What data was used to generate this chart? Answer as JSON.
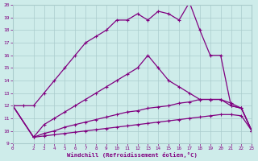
{
  "xlabel": "Windchill (Refroidissement éolien,°C)",
  "bg_color": "#ceecea",
  "line_color": "#800080",
  "grid_color": "#aacccc",
  "xlim": [
    0,
    23
  ],
  "ylim": [
    9,
    20
  ],
  "xticks": [
    0,
    2,
    3,
    4,
    5,
    6,
    7,
    8,
    9,
    10,
    11,
    12,
    13,
    14,
    15,
    16,
    17,
    18,
    19,
    20,
    21,
    22,
    23
  ],
  "yticks": [
    9,
    10,
    11,
    12,
    13,
    14,
    15,
    16,
    17,
    18,
    19,
    20
  ],
  "curve_top_x": [
    0,
    1,
    2,
    3,
    4,
    5,
    6,
    7,
    8,
    9,
    10,
    11,
    12,
    13,
    14,
    15,
    16,
    17,
    18,
    19,
    20,
    21,
    22,
    23
  ],
  "curve_top_y": [
    12.0,
    12.0,
    12.0,
    13.0,
    14.0,
    15.0,
    16.0,
    17.0,
    17.5,
    18.0,
    18.8,
    18.8,
    19.3,
    18.8,
    19.5,
    19.3,
    18.8,
    20.2,
    18.0,
    16.0,
    16.0,
    12.0,
    11.8,
    10.0
  ],
  "curve_mid_x": [
    0,
    2,
    3,
    4,
    5,
    6,
    7,
    8,
    9,
    10,
    11,
    12,
    13,
    14,
    15,
    16,
    17,
    18,
    19,
    20,
    21,
    22,
    23
  ],
  "curve_mid_y": [
    12.0,
    9.5,
    10.5,
    11.0,
    11.5,
    12.0,
    12.5,
    13.0,
    13.5,
    14.0,
    14.5,
    15.0,
    16.0,
    15.0,
    14.0,
    13.5,
    13.0,
    12.5,
    12.5,
    12.5,
    12.0,
    11.8,
    10.0
  ],
  "curve_low_x": [
    0,
    2,
    3,
    4,
    5,
    6,
    7,
    8,
    9,
    10,
    11,
    12,
    13,
    14,
    15,
    16,
    17,
    18,
    19,
    20,
    21,
    22,
    23
  ],
  "curve_low_y": [
    12.0,
    9.5,
    9.8,
    10.0,
    10.3,
    10.5,
    10.7,
    10.9,
    11.1,
    11.3,
    11.5,
    11.6,
    11.8,
    11.9,
    12.0,
    12.2,
    12.3,
    12.5,
    12.5,
    12.5,
    12.2,
    11.8,
    10.0
  ],
  "curve_flat_x": [
    0,
    2,
    3,
    4,
    5,
    6,
    7,
    8,
    9,
    10,
    11,
    12,
    13,
    14,
    15,
    16,
    17,
    18,
    19,
    20,
    21,
    22,
    23
  ],
  "curve_flat_y": [
    12.0,
    9.5,
    9.6,
    9.7,
    9.8,
    9.9,
    10.0,
    10.1,
    10.2,
    10.3,
    10.4,
    10.5,
    10.6,
    10.7,
    10.8,
    10.9,
    11.0,
    11.1,
    11.2,
    11.3,
    11.3,
    11.2,
    10.0
  ]
}
